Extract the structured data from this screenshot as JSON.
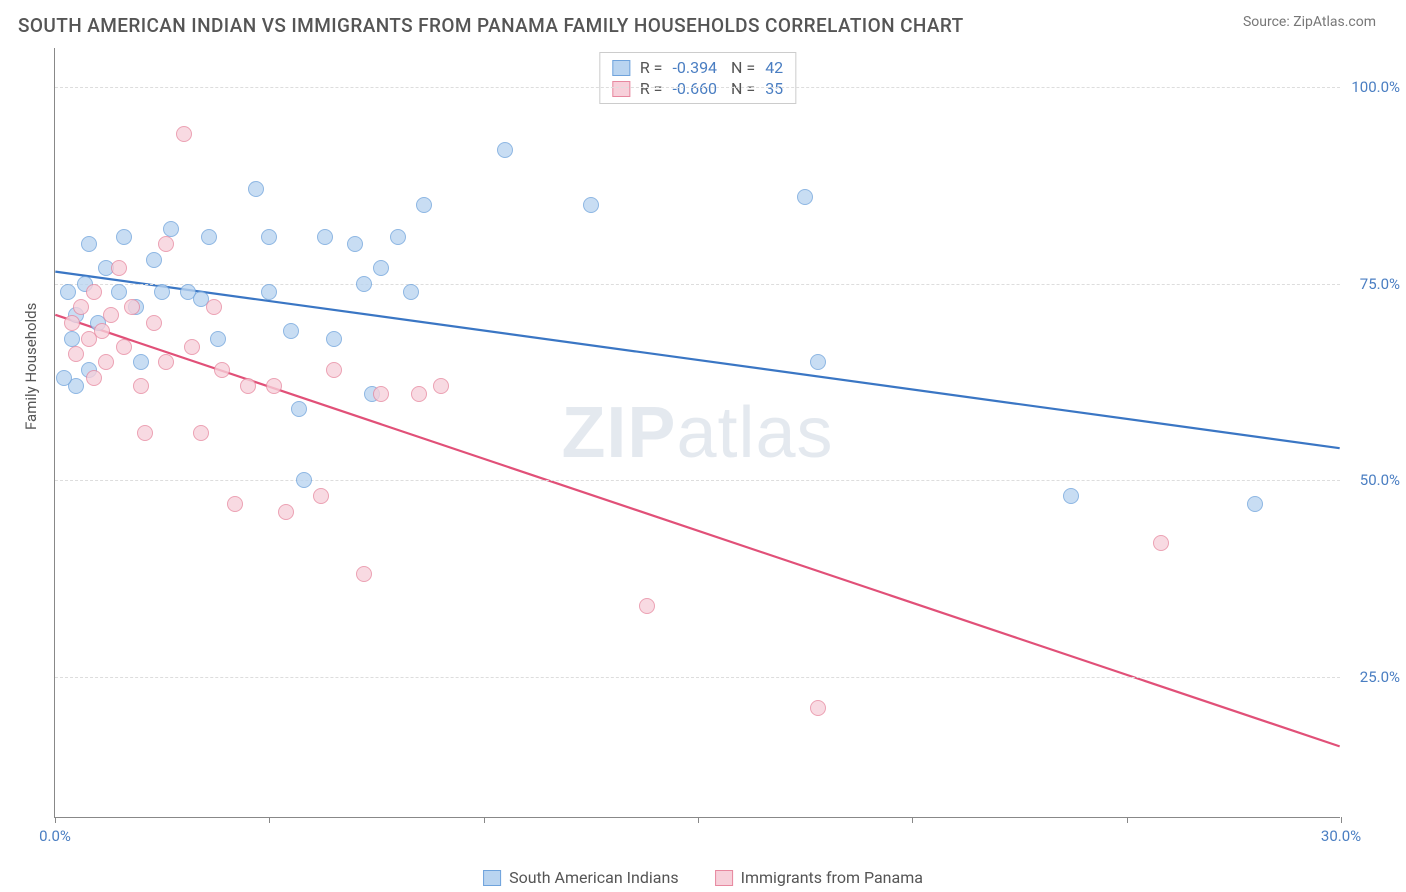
{
  "header": {
    "title": "SOUTH AMERICAN INDIAN VS IMMIGRANTS FROM PANAMA FAMILY HOUSEHOLDS CORRELATION CHART",
    "source": "Source: ZipAtlas.com"
  },
  "watermark": {
    "bold": "ZIP",
    "light": "atlas"
  },
  "chart": {
    "type": "scatter",
    "y_axis_title": "Family Households",
    "x_range": [
      0,
      30
    ],
    "y_range": [
      7,
      105
    ],
    "x_ticks": [
      0,
      5,
      10,
      15,
      20,
      25,
      30
    ],
    "x_tick_labels": {
      "0": "0.0%",
      "30": "30.0%"
    },
    "y_gridlines": [
      25,
      50,
      75,
      100
    ],
    "y_tick_labels": [
      "25.0%",
      "50.0%",
      "75.0%",
      "100.0%"
    ],
    "grid_color": "#dddddd",
    "axis_color": "#888888",
    "tick_label_color": "#4a7ec2",
    "marker_radius": 8,
    "marker_stroke_width": 1.3,
    "trend_line_width": 2.2,
    "series": [
      {
        "name": "South American Indians",
        "color_fill": "#b9d4f0",
        "color_stroke": "#6fa3dc",
        "line_color": "#3a76c4",
        "R": "-0.394",
        "N": "42",
        "trend": {
          "x1": 0,
          "y1": 76.5,
          "x2": 30,
          "y2": 54
        },
        "points": [
          [
            0.3,
            74
          ],
          [
            0.4,
            68
          ],
          [
            0.5,
            62
          ],
          [
            0.5,
            71
          ],
          [
            0.7,
            75
          ],
          [
            0.8,
            80
          ],
          [
            0.8,
            64
          ],
          [
            1.0,
            70
          ],
          [
            1.2,
            77
          ],
          [
            1.5,
            74
          ],
          [
            1.6,
            81
          ],
          [
            1.9,
            72
          ],
          [
            2.0,
            65
          ],
          [
            2.3,
            78
          ],
          [
            2.5,
            74
          ],
          [
            2.7,
            82
          ],
          [
            3.1,
            74
          ],
          [
            3.4,
            73
          ],
          [
            3.6,
            81
          ],
          [
            3.8,
            68
          ],
          [
            4.7,
            87
          ],
          [
            5.0,
            81
          ],
          [
            5.0,
            74
          ],
          [
            5.5,
            69
          ],
          [
            5.7,
            59
          ],
          [
            5.8,
            50
          ],
          [
            6.3,
            81
          ],
          [
            6.5,
            68
          ],
          [
            7.0,
            80
          ],
          [
            7.2,
            75
          ],
          [
            7.4,
            61
          ],
          [
            7.6,
            77
          ],
          [
            8.0,
            81
          ],
          [
            8.3,
            74
          ],
          [
            8.6,
            85
          ],
          [
            10.5,
            92
          ],
          [
            12.5,
            85
          ],
          [
            17.8,
            65
          ],
          [
            17.5,
            86
          ],
          [
            23.7,
            48
          ],
          [
            28.0,
            47
          ],
          [
            0.2,
            63
          ]
        ]
      },
      {
        "name": "Immigrants from Panama",
        "color_fill": "#f7d0da",
        "color_stroke": "#e7889f",
        "line_color": "#e15078",
        "R": "-0.660",
        "N": "35",
        "trend": {
          "x1": 0,
          "y1": 71,
          "x2": 30,
          "y2": 16
        },
        "points": [
          [
            0.4,
            70
          ],
          [
            0.5,
            66
          ],
          [
            0.6,
            72
          ],
          [
            0.8,
            68
          ],
          [
            0.9,
            63
          ],
          [
            0.9,
            74
          ],
          [
            1.1,
            69
          ],
          [
            1.2,
            65
          ],
          [
            1.3,
            71
          ],
          [
            1.5,
            77
          ],
          [
            1.6,
            67
          ],
          [
            1.8,
            72
          ],
          [
            2.0,
            62
          ],
          [
            2.1,
            56
          ],
          [
            2.3,
            70
          ],
          [
            2.6,
            80
          ],
          [
            2.6,
            65
          ],
          [
            3.0,
            94
          ],
          [
            3.2,
            67
          ],
          [
            3.4,
            56
          ],
          [
            3.7,
            72
          ],
          [
            3.9,
            64
          ],
          [
            4.2,
            47
          ],
          [
            4.5,
            62
          ],
          [
            5.1,
            62
          ],
          [
            5.4,
            46
          ],
          [
            6.2,
            48
          ],
          [
            6.5,
            64
          ],
          [
            7.2,
            38
          ],
          [
            7.6,
            61
          ],
          [
            8.5,
            61
          ],
          [
            9.0,
            62
          ],
          [
            13.8,
            34
          ],
          [
            17.8,
            21
          ],
          [
            25.8,
            42
          ]
        ]
      }
    ]
  },
  "legend": {
    "series1_label": "South American Indians",
    "series2_label": "Immigrants from Panama"
  }
}
